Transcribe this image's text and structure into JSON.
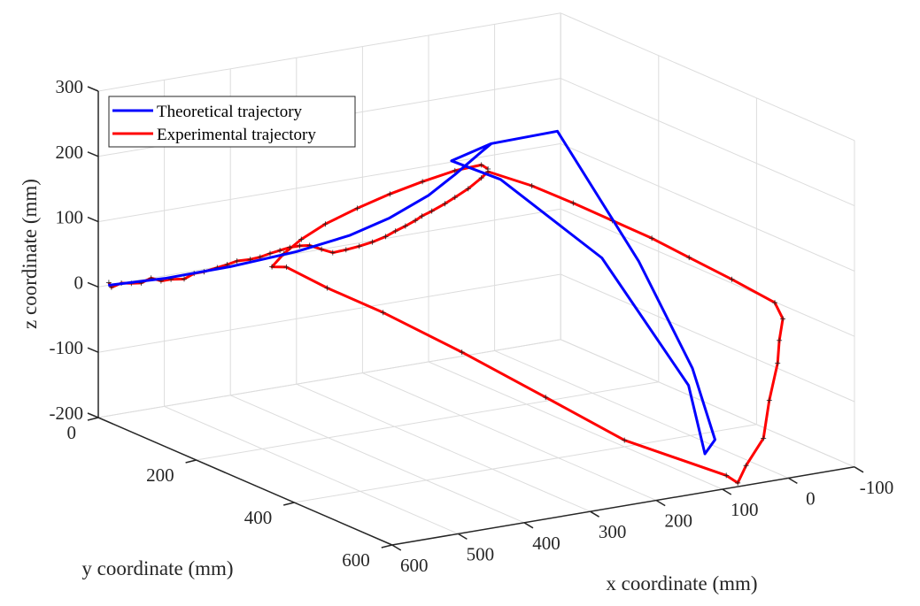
{
  "chart_data": {
    "type": "line3d",
    "title": "",
    "xlabel": "x coordinate (mm)",
    "ylabel": "y coordinate (mm)",
    "zlabel": "z coordinate (mm)",
    "xlim": [
      -100,
      600
    ],
    "ylim": [
      0,
      600
    ],
    "zlim": [
      -200,
      300
    ],
    "xticks": [
      "600",
      "500",
      "400",
      "300",
      "200",
      "100",
      "0",
      "-100"
    ],
    "xtick_values": [
      600,
      500,
      400,
      300,
      200,
      100,
      0,
      -100
    ],
    "yticks": [
      "0",
      "200",
      "400",
      "600"
    ],
    "ytick_values": [
      0,
      200,
      400,
      600
    ],
    "zticks": [
      "300",
      "200",
      "100",
      "0",
      "-100",
      "-200"
    ],
    "ztick_values": [
      300,
      200,
      100,
      0,
      -100,
      -200
    ],
    "grid": true,
    "legend_position": "top-left",
    "series": [
      {
        "name": "Theoretical trajectory",
        "color": "#0000ff",
        "marker": "none",
        "points": [
          [
            585,
            0,
            0
          ],
          [
            500,
            0,
            -4
          ],
          [
            400,
            0,
            -3
          ],
          [
            300,
            0,
            3
          ],
          [
            220,
            0,
            14
          ],
          [
            160,
            0,
            30
          ],
          [
            100,
            0,
            55
          ],
          [
            60,
            0,
            80
          ],
          [
            20,
            0,
            108
          ],
          [
            5,
            0,
            118
          ],
          [
            -95,
            0,
            120
          ],
          [
            -70,
            200,
            -10
          ],
          [
            -40,
            350,
            -120
          ],
          [
            0,
            450,
            -190
          ],
          [
            30,
            470,
            -200
          ],
          [
            40,
            450,
            -100
          ],
          [
            60,
            300,
            50
          ],
          [
            80,
            120,
            115
          ],
          [
            95,
            40,
            120
          ],
          [
            5,
            0,
            118
          ]
        ]
      },
      {
        "name": "Experimental trajectory",
        "color": "#ff0000",
        "marker": "+",
        "points": [
          [
            584,
            0,
            4
          ],
          [
            580,
            0,
            -4
          ],
          [
            565,
            0,
            0
          ],
          [
            550,
            0,
            -3
          ],
          [
            535,
            0,
            -5
          ],
          [
            520,
            0,
            0
          ],
          [
            505,
            0,
            -7
          ],
          [
            490,
            0,
            -7
          ],
          [
            470,
            0,
            -10
          ],
          [
            455,
            0,
            -4
          ],
          [
            440,
            0,
            -4
          ],
          [
            420,
            0,
            -1
          ],
          [
            405,
            0,
            1
          ],
          [
            390,
            0,
            4
          ],
          [
            370,
            0,
            3
          ],
          [
            355,
            0,
            4
          ],
          [
            340,
            0,
            7
          ],
          [
            325,
            0,
            9
          ],
          [
            310,
            0,
            11
          ],
          [
            295,
            0,
            11
          ],
          [
            280,
            0,
            9
          ],
          [
            262,
            0,
            0
          ],
          [
            245,
            0,
            -8
          ],
          [
            225,
            0,
            -7
          ],
          [
            205,
            0,
            -5
          ],
          [
            185,
            0,
            -2
          ],
          [
            165,
            0,
            3
          ],
          [
            150,
            0,
            9
          ],
          [
            135,
            0,
            14
          ],
          [
            120,
            0,
            20
          ],
          [
            110,
            0,
            25
          ],
          [
            95,
            0,
            30
          ],
          [
            75,
            0,
            38
          ],
          [
            60,
            0,
            45
          ],
          [
            40,
            0,
            55
          ],
          [
            20,
            0,
            68
          ],
          [
            10,
            0,
            76
          ],
          [
            -12,
            60,
            70
          ],
          [
            -30,
            120,
            60
          ],
          [
            -45,
            180,
            50
          ],
          [
            -60,
            240,
            40
          ],
          [
            -72,
            300,
            28
          ],
          [
            -85,
            370,
            15
          ],
          [
            -98,
            440,
            0
          ],
          [
            -99,
            455,
            -20
          ],
          [
            -90,
            460,
            -50
          ],
          [
            -80,
            470,
            -80
          ],
          [
            -60,
            480,
            -130
          ],
          [
            -40,
            495,
            -180
          ],
          [
            -10,
            500,
            -215
          ],
          [
            10,
            510,
            -235
          ],
          [
            20,
            500,
            -225
          ],
          [
            100,
            400,
            -190
          ],
          [
            160,
            320,
            -140
          ],
          [
            220,
            230,
            -90
          ],
          [
            280,
            150,
            -45
          ],
          [
            320,
            90,
            -20
          ],
          [
            345,
            40,
            0
          ],
          [
            352,
            20,
            -5
          ],
          [
            330,
            15,
            10
          ],
          [
            300,
            10,
            25
          ],
          [
            260,
            5,
            40
          ],
          [
            210,
            3,
            55
          ],
          [
            160,
            2,
            68
          ],
          [
            110,
            1,
            78
          ],
          [
            60,
            0,
            86
          ],
          [
            20,
            0,
            88
          ],
          [
            10,
            0,
            80
          ]
        ]
      }
    ]
  }
}
